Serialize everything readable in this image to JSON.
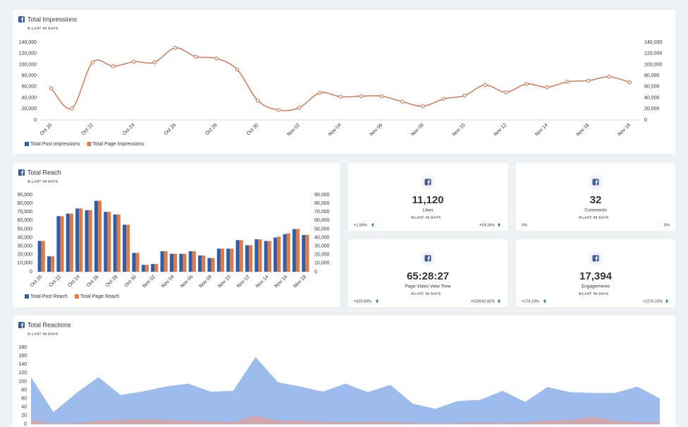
{
  "chart_data": [
    {
      "type": "line",
      "title": "Total Impressions",
      "subtitle": "LAST 30 DAYS",
      "categories": [
        "Oct 20",
        null,
        "Oct 22",
        null,
        "Oct 24",
        null,
        "Oct 26",
        null,
        "Oct 28",
        null,
        "Oct 30",
        null,
        "Nov 02",
        null,
        "Nov 04",
        null,
        "Nov 06",
        null,
        "Nov 08",
        null,
        "Nov 10",
        null,
        "Nov 12",
        null,
        "Nov 14",
        null,
        "Nov 16",
        null,
        "Nov 18"
      ],
      "series": [
        {
          "name": "Total Post Impressions",
          "color": "#2b5fad",
          "values": [
            57000,
            21000,
            104000,
            97000,
            105000,
            104000,
            130000,
            114000,
            111000,
            91000,
            35000,
            18000,
            22000,
            49000,
            42000,
            43000,
            43000,
            33000,
            25000,
            38000,
            44000,
            63000,
            50000,
            65000,
            59000,
            69000,
            71000,
            78000,
            68000
          ]
        },
        {
          "name": "Total Page Impressions",
          "color": "#e07b48",
          "axis": "y2",
          "values": [
            57000,
            21000,
            104000,
            97000,
            105000,
            104000,
            130000,
            114000,
            111000,
            91000,
            35000,
            18000,
            22000,
            49000,
            42000,
            43000,
            43000,
            33000,
            25000,
            38000,
            44000,
            63000,
            50000,
            65000,
            59000,
            69000,
            71000,
            78000,
            68000
          ]
        }
      ],
      "ylim": [
        0,
        140000
      ],
      "yticks": [
        0,
        {
          "value": 20000,
          "label": "20,000"
        },
        {
          "value": 40000,
          "label": "40,000"
        },
        {
          "value": 60000,
          "label": "60,000"
        },
        {
          "value": 80000,
          "label": "80,000"
        },
        {
          "value": 100000,
          "label": "100,000"
        },
        {
          "value": 120000,
          "label": "120,000"
        },
        {
          "value": 140000,
          "label": "140,000"
        }
      ],
      "y2lim": [
        0,
        140000
      ],
      "y2ticks": [
        0,
        {
          "value": 20000,
          "label": "20,000"
        },
        {
          "value": 40000,
          "label": "40,000"
        },
        {
          "value": 60000,
          "label": "60,000"
        },
        {
          "value": 80000,
          "label": "80,000"
        },
        {
          "value": 100000,
          "label": "100,000"
        },
        {
          "value": 120000,
          "label": "120,000"
        },
        {
          "value": 140000,
          "label": "140,000"
        }
      ],
      "legend": "bottom-left"
    },
    {
      "type": "bar",
      "title": "Total Reach",
      "subtitle": "LAST 30 DAYS",
      "categories": [
        "Oct 20",
        null,
        "Oct 22",
        null,
        "Oct 24",
        null,
        "Oct 26",
        null,
        "Oct 28",
        null,
        "Oct 30",
        null,
        "Nov 02",
        null,
        "Nov 04",
        null,
        "Nov 06",
        null,
        "Nov 08",
        null,
        "Nov 10",
        null,
        "Nov 12",
        null,
        "Nov 14",
        null,
        "Nov 16",
        null,
        "Nov 18"
      ],
      "series": [
        {
          "name": "Total Post Reach",
          "color": "#2b5fad",
          "values": [
            36000,
            18000,
            65000,
            68000,
            74000,
            72000,
            83000,
            70000,
            67000,
            55000,
            22000,
            8000,
            9000,
            24000,
            21000,
            21000,
            24000,
            19000,
            16000,
            27000,
            27000,
            37000,
            31000,
            38000,
            36000,
            40000,
            44000,
            50000,
            43000
          ]
        },
        {
          "name": "Total Page Reach",
          "color": "#e07b48",
          "axis": "y2",
          "values": [
            36000,
            18000,
            65000,
            68000,
            74000,
            72000,
            83000,
            70000,
            67000,
            55000,
            22000,
            8000,
            9000,
            24000,
            21000,
            21000,
            24000,
            19000,
            16000,
            27000,
            27000,
            37000,
            31000,
            38000,
            36000,
            41000,
            45000,
            50000,
            43000
          ]
        }
      ],
      "ylim": [
        0,
        90000
      ],
      "yticks": [
        0,
        {
          "value": 10000,
          "label": "10,000"
        },
        {
          "value": 20000,
          "label": "20,000"
        },
        {
          "value": 30000,
          "label": "30,000"
        },
        {
          "value": 40000,
          "label": "40,000"
        },
        {
          "value": 50000,
          "label": "50,000"
        },
        {
          "value": 60000,
          "label": "60,000"
        },
        {
          "value": 70000,
          "label": "70,000"
        },
        {
          "value": 80000,
          "label": "80,000"
        },
        {
          "value": 90000,
          "label": "90,000"
        }
      ],
      "y2lim": [
        0,
        90000
      ],
      "y2ticks": [
        0,
        {
          "value": 10000,
          "label": "10,000"
        },
        {
          "value": 20000,
          "label": "20,000"
        },
        {
          "value": 30000,
          "label": "30,000"
        },
        {
          "value": 40000,
          "label": "40,000"
        },
        {
          "value": 50000,
          "label": "50,000"
        },
        {
          "value": 60000,
          "label": "60,000"
        },
        {
          "value": 70000,
          "label": "70,000"
        },
        {
          "value": 80000,
          "label": "80,000"
        },
        {
          "value": 90000,
          "label": "90,000"
        }
      ],
      "legend": "bottom-left"
    },
    {
      "type": "area",
      "title": "Total Reactions",
      "subtitle": "LAST 30 DAYS",
      "series": [
        {
          "color": "#90b5ea",
          "values": [
            110,
            28,
            72,
            110,
            68,
            77,
            88,
            95,
            76,
            78,
            157,
            98,
            88,
            76,
            95,
            75,
            92,
            48,
            36,
            54,
            57,
            78,
            52,
            87,
            75,
            73,
            73,
            88,
            60
          ]
        },
        {
          "color": "#d7a3a6",
          "values": [
            10,
            2,
            3,
            8,
            10,
            12,
            10,
            8,
            7,
            5,
            20,
            8,
            8,
            6,
            5,
            6,
            5,
            3,
            2,
            3,
            4,
            3,
            5,
            8,
            10,
            17,
            8,
            5,
            4
          ]
        }
      ],
      "ylim": [
        0,
        180
      ],
      "yticks": [
        0,
        20,
        40,
        60,
        80,
        100,
        120,
        140,
        160,
        180
      ]
    }
  ],
  "cards": [
    {
      "value": "11,120",
      "label": "Likes",
      "period": "LAST 30 DAYS",
      "left_change": "+1.84%",
      "right_change": "+54.34%",
      "arrows": true
    },
    {
      "value": "32",
      "label": "Comments",
      "period": "LAST 30 DAYS",
      "left_change": "0%",
      "right_change": "0%",
      "arrows": false
    },
    {
      "value": "65:28:27",
      "label": "Page Video View Time",
      "period": "LAST 30 DAYS",
      "left_change": "+620.84%",
      "right_change": "+520592.82%",
      "arrows": true
    },
    {
      "value": "17,394",
      "label": "Engagements",
      "period": "LAST 30 DAYS",
      "left_change": "+176.23%",
      "right_change": "+2276.23%",
      "arrows": true
    }
  ]
}
